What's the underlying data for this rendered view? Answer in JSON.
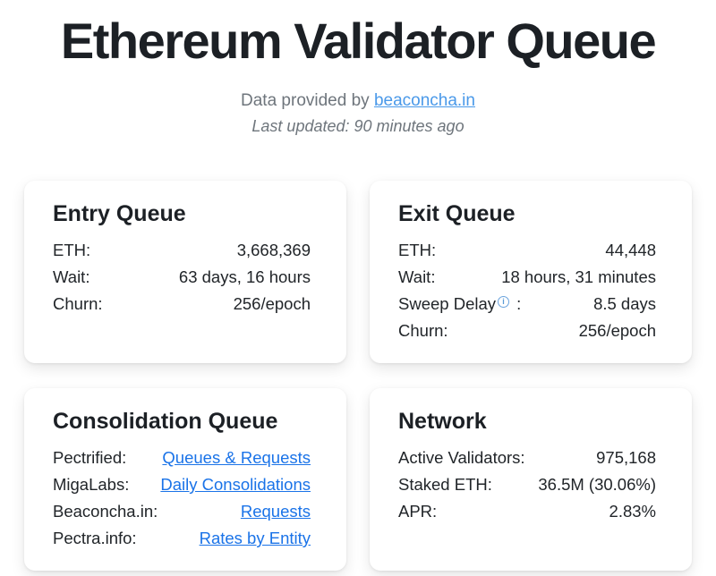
{
  "header": {
    "title": "Ethereum Validator Queue",
    "subtitle_prefix": "Data provided by ",
    "subtitle_link": "beaconcha.in",
    "last_updated": "Last updated: 90 minutes ago"
  },
  "icons": {
    "info_glyph": "i"
  },
  "colors": {
    "text_dark": "#212529",
    "text_muted": "#6e757c",
    "header_link_blue": "#4a99e9",
    "card_link_blue": "#1a73e8",
    "info_icon_blue": "#5b9bd5",
    "card_background": "#ffffff"
  },
  "cards": [
    {
      "id": "entry-queue",
      "title": "Entry Queue",
      "rows": [
        {
          "label": "ETH:",
          "value": "3,668,369"
        },
        {
          "label": "Wait:",
          "value": "63 days, 16 hours"
        },
        {
          "label": "Churn:",
          "value": "256/epoch"
        }
      ]
    },
    {
      "id": "exit-queue",
      "title": "Exit Queue",
      "rows": [
        {
          "label": "ETH:",
          "value": "44,448"
        },
        {
          "label": "Wait:",
          "value": "18 hours, 31 minutes"
        },
        {
          "label": "Sweep Delay",
          "has_info": true,
          "label_suffix": " :",
          "value": "8.5 days"
        },
        {
          "label": "Churn:",
          "value": "256/epoch"
        }
      ]
    },
    {
      "id": "consolidation-queue",
      "title": "Consolidation Queue",
      "rows": [
        {
          "label": "Pectrified:",
          "link": "Queues & Requests"
        },
        {
          "label": "MigaLabs:",
          "link": "Daily Consolidations"
        },
        {
          "label": "Beaconcha.in:",
          "link": "Requests"
        },
        {
          "label": "Pectra.info:",
          "link": "Rates by Entity"
        }
      ]
    },
    {
      "id": "network",
      "title": "Network",
      "rows": [
        {
          "label": "Active Validators:",
          "value": "975,168"
        },
        {
          "label": "Staked ETH:",
          "value": "36.5M (30.06%)"
        },
        {
          "label": "APR:",
          "value": "2.83%"
        }
      ]
    }
  ]
}
